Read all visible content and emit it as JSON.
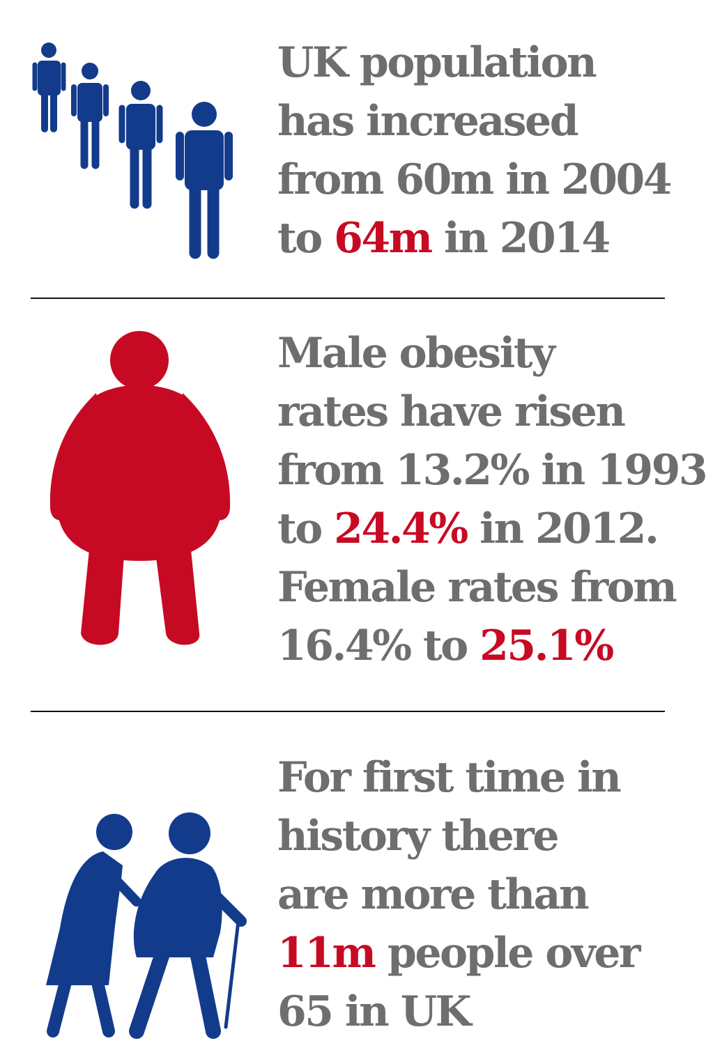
{
  "colors": {
    "text": "#6e6e70",
    "highlight": "#c70a23",
    "blue_icon": "#133b8c",
    "red_icon": "#c70a23",
    "divider": "#111111"
  },
  "population": {
    "icon": "growing-people-icon",
    "line1": "UK population",
    "line2": "has increased",
    "line3": "from 60m in 2004",
    "line4_pre": "to ",
    "line4_hl": "64m",
    "line4_post": " in 2014"
  },
  "obesity": {
    "icon": "obese-person-icon",
    "line1": "Male obesity",
    "line2": "rates have risen",
    "line3": "from 13.2% in 1993",
    "line4_pre": "to ",
    "line4_hl": "24.4%",
    "line4_post": " in 2012.",
    "line5": "Female rates from",
    "line6_pre": "16.4% to ",
    "line6_hl": "25.1%"
  },
  "elderly": {
    "icon": "elderly-couple-icon",
    "line1": "For first time in",
    "line2": "history there",
    "line3": "are more than",
    "line4_hl": "11m",
    "line4_post": " people over",
    "line5": "65 in UK"
  }
}
